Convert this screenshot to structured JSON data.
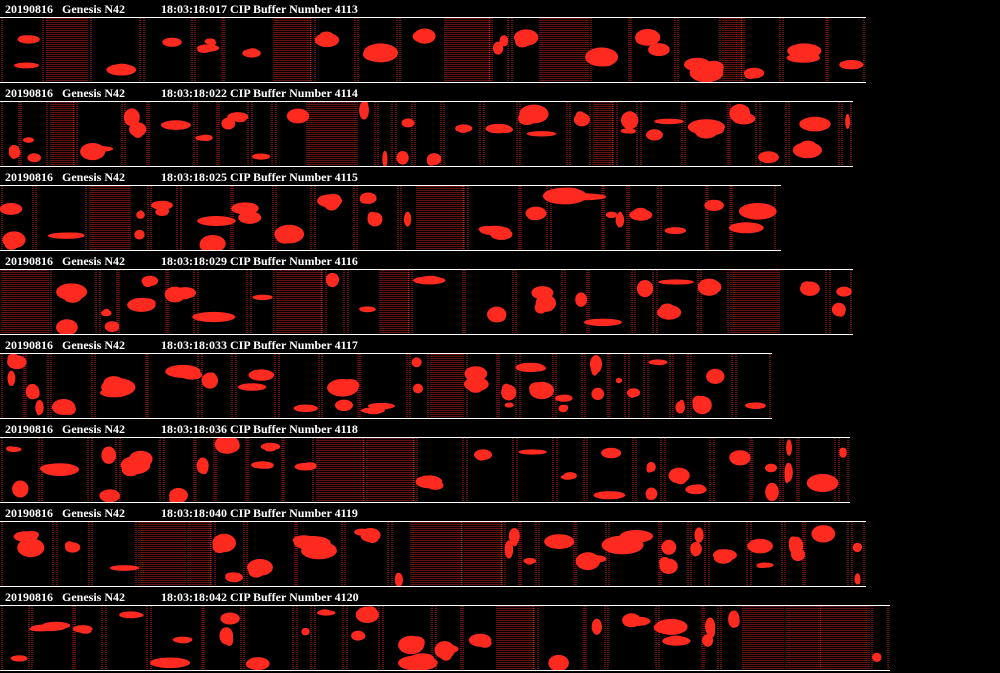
{
  "colors": {
    "background": "#000000",
    "text": "#ffffff",
    "particle": "#ff2a1f",
    "edge": "#c8281e"
  },
  "buffers": [
    {
      "date": "20190816",
      "probe": "Genesis N42",
      "time": "18:03:18:017",
      "buffer_label": "CIP Buffer Number",
      "buffer_number": "4113"
    },
    {
      "date": "20190816",
      "probe": "Genesis N42",
      "time": "18:03:18:022",
      "buffer_label": "CIP Buffer Number",
      "buffer_number": "4114"
    },
    {
      "date": "20190816",
      "probe": "Genesis N42",
      "time": "18:03:18:025",
      "buffer_label": "CIP Buffer Number",
      "buffer_number": "4115"
    },
    {
      "date": "20190816",
      "probe": "Genesis N42",
      "time": "18:03:18:029",
      "buffer_label": "CIP Buffer Number",
      "buffer_number": "4116"
    },
    {
      "date": "20190816",
      "probe": "Genesis N42",
      "time": "18:03:18:033",
      "buffer_label": "CIP Buffer Number",
      "buffer_number": "4117"
    },
    {
      "date": "20190816",
      "probe": "Genesis N42",
      "time": "18:03:18:036",
      "buffer_label": "CIP Buffer Number",
      "buffer_number": "4118"
    },
    {
      "date": "20190816",
      "probe": "Genesis N42",
      "time": "18:03:18:040",
      "buffer_label": "CIP Buffer Number",
      "buffer_number": "4119"
    },
    {
      "date": "20190816",
      "probe": "Genesis N42",
      "time": "18:03:18:042",
      "buffer_label": "CIP Buffer Number",
      "buffer_number": "4120"
    }
  ]
}
